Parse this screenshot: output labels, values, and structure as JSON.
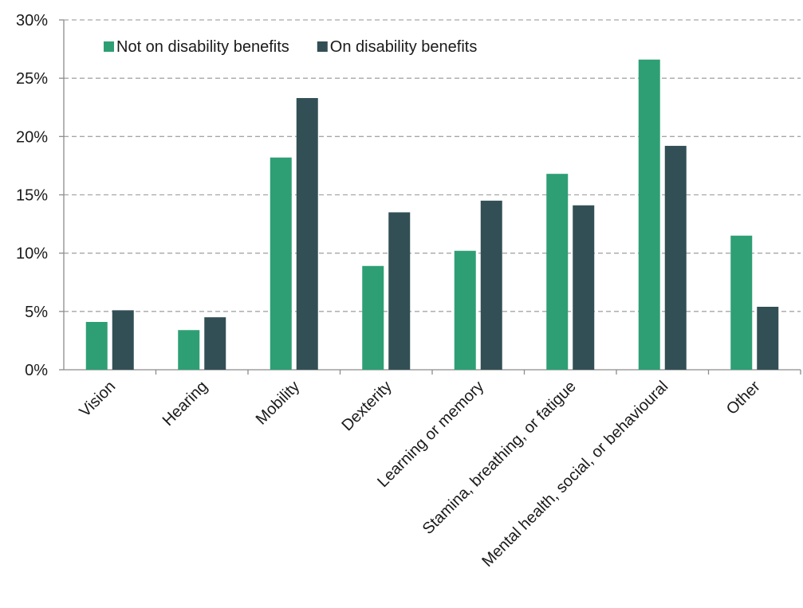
{
  "chart_data": {
    "type": "bar",
    "title": "",
    "xlabel": "",
    "ylabel": "",
    "ylim": [
      0,
      30
    ],
    "yticks": [
      "0%",
      "5%",
      "10%",
      "15%",
      "20%",
      "25%",
      "30%"
    ],
    "grid": true,
    "legend_position": "top-left",
    "categories": [
      "Vision",
      "Hearing",
      "Mobility",
      "Dexterity",
      "Learning or memory",
      "Stamina, breathing, or fatigue",
      "Mental health, social, or behavioural",
      "Other"
    ],
    "series": [
      {
        "name": "Not on disability benefits",
        "color": "#2e9f74",
        "values": [
          4.1,
          3.4,
          18.2,
          8.9,
          10.2,
          16.8,
          26.6,
          11.5
        ]
      },
      {
        "name": "On disability benefits",
        "color": "#324f55",
        "values": [
          5.1,
          4.5,
          23.3,
          13.5,
          14.5,
          14.1,
          19.2,
          5.4
        ]
      }
    ]
  }
}
